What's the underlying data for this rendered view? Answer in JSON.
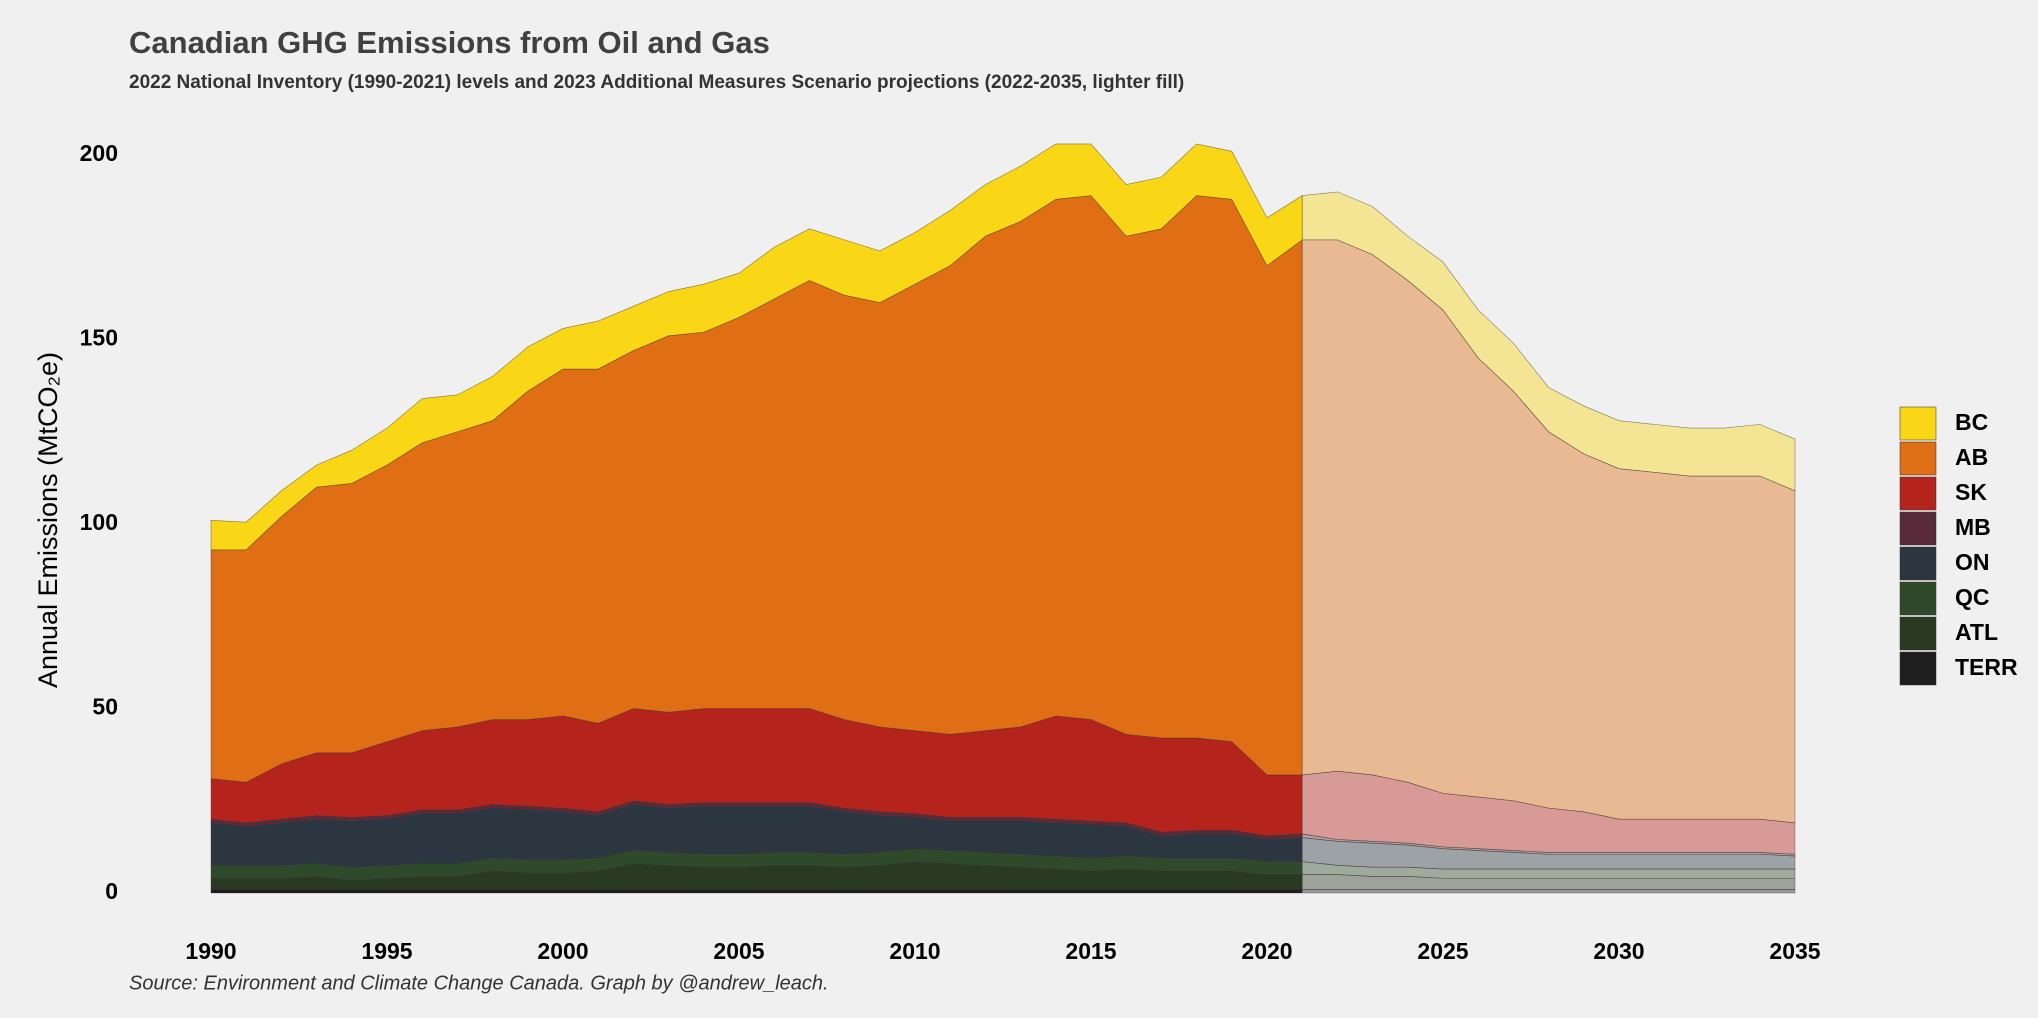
{
  "chart_data": {
    "type": "stacked_area",
    "title": "Canadian GHG Emissions from Oil and Gas",
    "subtitle": "2022 National Inventory (1990-2021) levels and 2023 Additional Measures Scenario projections (2022-2035, lighter fill)",
    "y_label": "Annual Emissions  (MtCO₂e)",
    "source": "Source: Environment and Climate Change Canada. Graph by @andrew_leach.",
    "x": [
      1990,
      1991,
      1992,
      1993,
      1994,
      1995,
      1996,
      1997,
      1998,
      1999,
      2000,
      2001,
      2002,
      2003,
      2004,
      2005,
      2006,
      2007,
      2008,
      2009,
      2010,
      2011,
      2012,
      2013,
      2014,
      2015,
      2016,
      2017,
      2018,
      2019,
      2020,
      2021,
      2022,
      2023,
      2024,
      2025,
      2026,
      2027,
      2028,
      2029,
      2030,
      2031,
      2032,
      2033,
      2034,
      2035
    ],
    "projection_start": 2021,
    "xlim": [
      1990,
      2035
    ],
    "xticks": [
      1990,
      1995,
      2000,
      2005,
      2010,
      2015,
      2020,
      2025,
      2030,
      2035
    ],
    "ylim": [
      0,
      200
    ],
    "yticks": [
      0,
      50,
      100,
      150,
      200
    ],
    "legend": "right",
    "series": [
      {
        "name": "TERR",
        "color": "#1e1e1e",
        "values": [
          1,
          1,
          1,
          1,
          1,
          1,
          1,
          1,
          1,
          1,
          1,
          1,
          1,
          1,
          1,
          1,
          1,
          1,
          1,
          1,
          1,
          1,
          1,
          1,
          1,
          1,
          1,
          1,
          1,
          1,
          1,
          1,
          1,
          1,
          1,
          1,
          1,
          1,
          1,
          1,
          1,
          1,
          1,
          1,
          1,
          1
        ]
      },
      {
        "name": "ATL",
        "color": "#2a3a22",
        "values": [
          3,
          3,
          3,
          3.5,
          2.5,
          3,
          3.5,
          3.5,
          5,
          4.5,
          4.5,
          5,
          7,
          6.5,
          6,
          6,
          6.5,
          6.5,
          6,
          6.5,
          7.5,
          7,
          6.5,
          6,
          5.5,
          5,
          5.5,
          5,
          5,
          5,
          4,
          4,
          4,
          3.5,
          3.5,
          3,
          3,
          3,
          3,
          3,
          3,
          3,
          3,
          3,
          3,
          3
        ]
      },
      {
        "name": "QC",
        "color": "#2f4a2b",
        "values": [
          3.5,
          3.5,
          3.5,
          3.5,
          3.5,
          3.5,
          3.5,
          3.5,
          3.5,
          3.5,
          3.5,
          3.5,
          3.5,
          3.5,
          3.5,
          3.5,
          3.5,
          3.5,
          3.5,
          3.5,
          3.5,
          3.5,
          3.5,
          3.5,
          3.5,
          3.5,
          3.5,
          3.5,
          3.5,
          3.5,
          3.5,
          3.5,
          2.5,
          2.5,
          2.5,
          2.5,
          2.5,
          2.5,
          2.5,
          2.5,
          2.5,
          2.5,
          2.5,
          2.5,
          2.5,
          2.5
        ]
      },
      {
        "name": "ON",
        "color": "#2b3640",
        "values": [
          11.5,
          10.5,
          11.5,
          12,
          12.5,
          12.5,
          13.5,
          13.5,
          13.5,
          13.5,
          13,
          11.5,
          12.5,
          12,
          13,
          13,
          12.5,
          12.5,
          11.5,
          10,
          8.5,
          8,
          8.5,
          9,
          9,
          9,
          8,
          6,
          6.5,
          6.5,
          6,
          6.5,
          6.5,
          6.5,
          6,
          5.5,
          5,
          4.5,
          4,
          4,
          4,
          4,
          4,
          4,
          4,
          3.5
        ]
      },
      {
        "name": "MB",
        "color": "#582a3a",
        "values": [
          1,
          1,
          1,
          1,
          1,
          1,
          1,
          1,
          1,
          1,
          1,
          1,
          1,
          1,
          1,
          1,
          1,
          1,
          1,
          1,
          1,
          1,
          1,
          1,
          1,
          1,
          1,
          1,
          1,
          1,
          1,
          1,
          0.5,
          0.5,
          0.5,
          0.5,
          0.5,
          0.5,
          0.5,
          0.5,
          0.5,
          0.5,
          0.5,
          0.5,
          0.5,
          0.5
        ]
      },
      {
        "name": "SK",
        "color": "#b4241c",
        "values": [
          11,
          11,
          15,
          17,
          17.5,
          20,
          21.5,
          22.5,
          23,
          23.5,
          25,
          24,
          25,
          25,
          25.5,
          25.5,
          25.5,
          25.5,
          24,
          23,
          22.5,
          22.5,
          23.5,
          24.5,
          28,
          27.5,
          24,
          25.5,
          25,
          24,
          16.5,
          16,
          18.5,
          18,
          16.5,
          14.5,
          14,
          13.5,
          12,
          11,
          9,
          9,
          9,
          9,
          9,
          8.5
        ]
      },
      {
        "name": "AB",
        "color": "#e06e14",
        "values": [
          62,
          63,
          67,
          72,
          73,
          75,
          78,
          80,
          81,
          89,
          94,
          96,
          97,
          102,
          102,
          106,
          111,
          116,
          115,
          115,
          121,
          127,
          134,
          137,
          140,
          142,
          135,
          138,
          147,
          147,
          138,
          145,
          144,
          141,
          136,
          131,
          119,
          111,
          102,
          97,
          95,
          94,
          93,
          93,
          93,
          90
        ]
      },
      {
        "name": "BC",
        "color": "#f9d616",
        "values": [
          8,
          7.5,
          7,
          6,
          9,
          10,
          12,
          10,
          12,
          12,
          11,
          13,
          12,
          12,
          13,
          12,
          14,
          14,
          15,
          14,
          14,
          15,
          14,
          15,
          15,
          14,
          14,
          14,
          14,
          13,
          13,
          12,
          13,
          13,
          12,
          13,
          13,
          13,
          12,
          13,
          13,
          13,
          13,
          13,
          14,
          14
        ]
      }
    ]
  }
}
